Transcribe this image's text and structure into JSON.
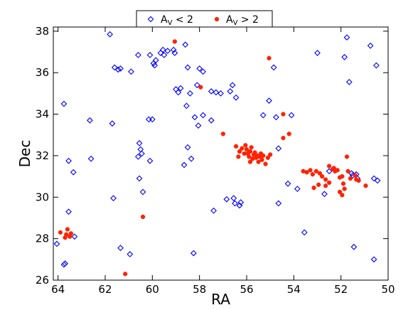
{
  "chart_data": {
    "type": "scatter",
    "xlabel": "RA",
    "ylabel": "Dec",
    "xlim": [
      64.2,
      50.0
    ],
    "ylim": [
      26.0,
      38.2
    ],
    "x_inverted": true,
    "grid": false,
    "legend_position": "top-center",
    "xticks": [
      "64",
      "62",
      "60",
      "58",
      "56",
      "54",
      "52",
      "50"
    ],
    "yticks": [
      "26",
      "28",
      "30",
      "32",
      "34",
      "36",
      "38"
    ],
    "series": [
      {
        "name_parts": [
          "A",
          "V",
          " < 2"
        ],
        "marker": "open-diamond",
        "color": "#0000ff",
        "points": [
          [
            61.8,
            37.85
          ],
          [
            61.6,
            36.25
          ],
          [
            61.45,
            36.15
          ],
          [
            61.35,
            36.2
          ],
          [
            60.9,
            36.05
          ],
          [
            60.6,
            36.85
          ],
          [
            60.1,
            36.85
          ],
          [
            59.95,
            36.45
          ],
          [
            59.9,
            36.35
          ],
          [
            59.85,
            36.6
          ],
          [
            59.65,
            36.95
          ],
          [
            59.55,
            37.1
          ],
          [
            59.5,
            36.85
          ],
          [
            59.35,
            37.05
          ],
          [
            59.1,
            37.1
          ],
          [
            59.05,
            36.95
          ],
          [
            58.6,
            37.35
          ],
          [
            58.5,
            36.25
          ],
          [
            58.0,
            36.2
          ],
          [
            57.85,
            36.05
          ],
          [
            57.5,
            35.1
          ],
          [
            57.3,
            35.05
          ],
          [
            57.1,
            35.0
          ],
          [
            56.6,
            35.4
          ],
          [
            56.45,
            34.8
          ],
          [
            56.7,
            35.1
          ],
          [
            59.0,
            35.2
          ],
          [
            58.9,
            35.05
          ],
          [
            58.8,
            35.25
          ],
          [
            58.4,
            35.0
          ],
          [
            58.1,
            35.4
          ],
          [
            57.85,
            33.95
          ],
          [
            58.05,
            33.45
          ],
          [
            57.5,
            33.7
          ],
          [
            58.2,
            33.85
          ],
          [
            58.55,
            34.4
          ],
          [
            60.15,
            33.75
          ],
          [
            60.0,
            33.75
          ],
          [
            61.7,
            33.55
          ],
          [
            62.65,
            33.7
          ],
          [
            63.75,
            34.5
          ],
          [
            63.55,
            31.75
          ],
          [
            63.35,
            31.2
          ],
          [
            62.6,
            31.85
          ],
          [
            60.55,
            32.6
          ],
          [
            60.5,
            32.3
          ],
          [
            60.45,
            32.1
          ],
          [
            60.6,
            31.95
          ],
          [
            60.1,
            31.75
          ],
          [
            60.55,
            30.9
          ],
          [
            60.4,
            30.25
          ],
          [
            58.5,
            32.4
          ],
          [
            58.35,
            31.85
          ],
          [
            58.65,
            31.55
          ],
          [
            61.65,
            29.95
          ],
          [
            63.55,
            29.3
          ],
          [
            63.3,
            28.1
          ],
          [
            64.05,
            27.75
          ],
          [
            63.7,
            26.8
          ],
          [
            63.75,
            26.75
          ],
          [
            61.35,
            27.55
          ],
          [
            60.95,
            27.25
          ],
          [
            58.25,
            27.3
          ],
          [
            57.4,
            29.35
          ],
          [
            56.85,
            29.9
          ],
          [
            56.55,
            29.95
          ],
          [
            56.25,
            29.75
          ],
          [
            56.5,
            29.7
          ],
          [
            56.3,
            29.6
          ],
          [
            55.3,
            33.95
          ],
          [
            55.05,
            34.65
          ],
          [
            54.75,
            33.85
          ],
          [
            54.1,
            33.95
          ],
          [
            54.65,
            32.35
          ],
          [
            54.25,
            30.65
          ],
          [
            54.65,
            29.7
          ],
          [
            53.85,
            30.4
          ],
          [
            53.55,
            28.3
          ],
          [
            52.7,
            30.15
          ],
          [
            52.5,
            31.25
          ],
          [
            51.55,
            31.15
          ],
          [
            51.5,
            31.05
          ],
          [
            51.3,
            30.9
          ],
          [
            51.35,
            31.1
          ],
          [
            50.6,
            30.9
          ],
          [
            50.45,
            30.8
          ],
          [
            51.45,
            27.6
          ],
          [
            50.6,
            27.0
          ],
          [
            51.65,
            35.55
          ],
          [
            51.75,
            37.7
          ],
          [
            51.85,
            36.75
          ],
          [
            50.75,
            37.3
          ],
          [
            50.5,
            36.35
          ],
          [
            53.0,
            36.95
          ],
          [
            54.85,
            36.25
          ]
        ]
      },
      {
        "name_parts": [
          "A",
          "V",
          " > 2"
        ],
        "marker": "filled-circle",
        "color": "#ff2200",
        "points": [
          [
            59.05,
            37.5
          ],
          [
            55.05,
            36.7
          ],
          [
            57.95,
            35.3
          ],
          [
            54.45,
            34.0
          ],
          [
            54.2,
            33.05
          ],
          [
            54.45,
            32.85
          ],
          [
            57.0,
            33.05
          ],
          [
            56.45,
            32.45
          ],
          [
            56.3,
            32.2
          ],
          [
            56.2,
            32.35
          ],
          [
            56.05,
            32.5
          ],
          [
            56.0,
            32.3
          ],
          [
            55.95,
            32.1
          ],
          [
            55.9,
            31.95
          ],
          [
            55.85,
            32.2
          ],
          [
            55.8,
            32.4
          ],
          [
            55.75,
            31.85
          ],
          [
            55.7,
            32.05
          ],
          [
            55.65,
            32.15
          ],
          [
            55.6,
            31.9
          ],
          [
            55.55,
            32.0
          ],
          [
            55.5,
            31.7
          ],
          [
            55.45,
            31.95
          ],
          [
            55.4,
            32.1
          ],
          [
            55.35,
            31.8
          ],
          [
            55.3,
            32.0
          ],
          [
            55.2,
            31.6
          ],
          [
            55.1,
            31.9
          ],
          [
            55.0,
            32.05
          ],
          [
            56.1,
            32.1
          ],
          [
            55.85,
            31.7
          ],
          [
            56.35,
            31.95
          ],
          [
            63.9,
            28.3
          ],
          [
            63.65,
            28.2
          ],
          [
            63.5,
            28.1
          ],
          [
            63.45,
            28.25
          ],
          [
            63.6,
            28.45
          ],
          [
            63.7,
            28.05
          ],
          [
            60.4,
            29.05
          ],
          [
            61.15,
            26.3
          ],
          [
            53.6,
            31.25
          ],
          [
            53.45,
            31.2
          ],
          [
            53.3,
            31.3
          ],
          [
            53.2,
            31.1
          ],
          [
            53.05,
            31.25
          ],
          [
            52.9,
            31.15
          ],
          [
            52.8,
            31.0
          ],
          [
            52.65,
            30.85
          ],
          [
            52.5,
            30.7
          ],
          [
            52.35,
            31.35
          ],
          [
            52.3,
            31.4
          ],
          [
            52.25,
            31.25
          ],
          [
            52.15,
            31.3
          ],
          [
            52.05,
            30.95
          ],
          [
            51.95,
            31.0
          ],
          [
            51.9,
            30.65
          ],
          [
            51.85,
            30.4
          ],
          [
            51.75,
            31.95
          ],
          [
            51.7,
            31.25
          ],
          [
            51.6,
            30.9
          ],
          [
            51.4,
            31.05
          ],
          [
            51.35,
            30.85
          ],
          [
            51.25,
            30.8
          ],
          [
            50.95,
            30.55
          ],
          [
            51.95,
            30.1
          ],
          [
            52.05,
            30.25
          ],
          [
            52.65,
            30.55
          ],
          [
            52.95,
            30.6
          ],
          [
            53.15,
            30.45
          ],
          [
            52.5,
            31.5
          ]
        ]
      }
    ]
  }
}
